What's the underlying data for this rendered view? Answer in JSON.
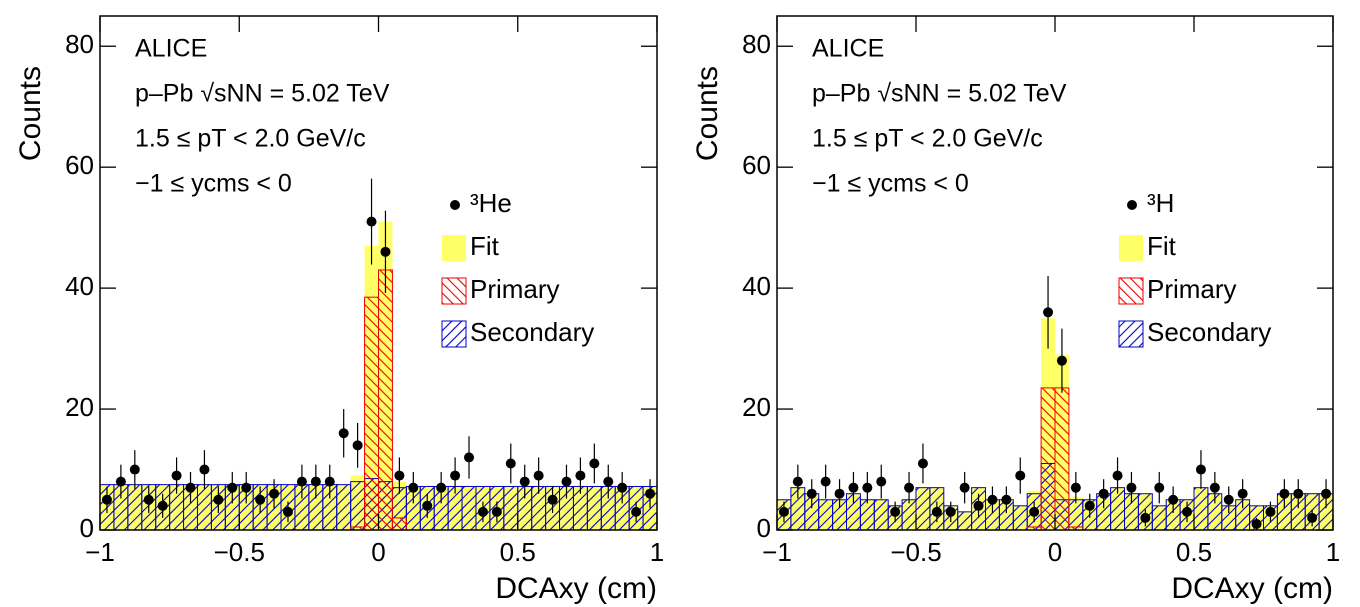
{
  "chart_data": [
    {
      "type": "histogram",
      "xlabel": "DCAxy (cm)",
      "ylabel": "Counts",
      "annotations": [
        "ALICE",
        "p–Pb √sNN = 5.02 TeV",
        "1.5 ≤ pT < 2.0 GeV/c",
        "−1 ≤ ycms < 0"
      ],
      "xlim": [
        -1,
        1
      ],
      "ylim": [
        0,
        85
      ],
      "xticks": [
        {
          "value": -1,
          "label": "−1"
        },
        {
          "value": -0.5,
          "label": "−0.5"
        },
        0,
        0.5,
        1
      ],
      "yticks": [
        0,
        20,
        40,
        60,
        80
      ],
      "bins": [
        -1,
        -0.95,
        -0.9,
        -0.85,
        -0.8,
        -0.75,
        -0.7,
        -0.65,
        -0.6,
        -0.55,
        -0.5,
        -0.45,
        -0.4,
        -0.35,
        -0.3,
        -0.25,
        -0.2,
        -0.15,
        -0.1,
        -0.05,
        0,
        0.05,
        0.1,
        0.15,
        0.2,
        0.25,
        0.3,
        0.35,
        0.4,
        0.45,
        0.5,
        0.55,
        0.6,
        0.65,
        0.7,
        0.75,
        0.8,
        0.85,
        0.9,
        0.95,
        1
      ],
      "series": [
        {
          "name": "Fit",
          "style": "fill",
          "color": "#ffff66",
          "values": [
            7.5,
            7.5,
            7.5,
            7.5,
            7.5,
            7.5,
            7.5,
            7.5,
            7.5,
            7.5,
            7.5,
            7.5,
            7.5,
            7.5,
            7.5,
            7.5,
            7.5,
            7.5,
            9,
            47,
            51,
            8,
            7.2,
            7.2,
            7.2,
            7.2,
            7.2,
            7.2,
            7.2,
            7.2,
            7.2,
            7.2,
            7.2,
            7.2,
            7.2,
            7.2,
            7.2,
            7.2,
            7.2,
            7.2
          ]
        },
        {
          "name": "Secondary",
          "style": "hatch-blue",
          "color": "#0000cc",
          "values": [
            7.5,
            7.5,
            7.5,
            7.5,
            7.5,
            7.5,
            7.5,
            7.5,
            7.5,
            7.5,
            7.5,
            7.5,
            7.5,
            7.5,
            7.5,
            7.5,
            7.5,
            7.5,
            8,
            8.5,
            8,
            7,
            7.2,
            7.2,
            7.2,
            7.2,
            7.2,
            7.2,
            7.2,
            7.2,
            7.2,
            7.2,
            7.2,
            7.2,
            7.2,
            7.2,
            7.2,
            7.2,
            7.2,
            7.2
          ]
        },
        {
          "name": "Primary",
          "style": "hatch-red",
          "color": "#ee0000",
          "values": [
            0,
            0,
            0,
            0,
            0,
            0,
            0,
            0,
            0,
            0,
            0,
            0,
            0,
            0,
            0,
            0,
            0,
            0,
            0.5,
            38.5,
            43,
            2,
            0,
            0,
            0,
            0,
            0,
            0,
            0,
            0,
            0,
            0,
            0,
            0,
            0,
            0,
            0,
            0,
            0,
            0
          ]
        },
        {
          "name": "³He",
          "style": "points",
          "color": "#000000",
          "values": [
            5,
            8,
            10,
            5,
            4,
            9,
            7,
            10,
            5,
            7,
            7,
            5,
            6,
            3,
            8,
            8,
            8,
            16,
            14,
            51,
            46,
            9,
            7,
            4,
            7,
            9,
            12,
            3,
            3,
            11,
            8,
            9,
            5,
            8,
            9,
            11,
            8,
            7,
            3,
            6
          ],
          "errors": [
            2.2,
            2.8,
            3.2,
            2.2,
            2,
            3,
            2.6,
            3.2,
            2.2,
            2.6,
            2.6,
            2.2,
            2.4,
            1.7,
            2.8,
            2.8,
            2.8,
            4,
            3.7,
            7.1,
            6.8,
            3,
            2.6,
            2,
            2.6,
            3,
            3.5,
            1.7,
            1.7,
            3.3,
            2.8,
            3,
            2.2,
            2.8,
            3,
            3.3,
            2.8,
            2.6,
            1.7,
            2.4
          ]
        }
      ]
    },
    {
      "type": "histogram",
      "xlabel": "DCAxy (cm)",
      "ylabel": "Counts",
      "annotations": [
        "ALICE",
        "p–Pb √sNN = 5.02 TeV",
        "1.5 ≤ pT < 2.0 GeV/c",
        "−1 ≤ ycms < 0"
      ],
      "xlim": [
        -1,
        1
      ],
      "ylim": [
        0,
        85
      ],
      "xticks": [
        {
          "value": -1,
          "label": "−1"
        },
        {
          "value": -0.5,
          "label": "−0.5"
        },
        0,
        0.5,
        1
      ],
      "yticks": [
        0,
        20,
        40,
        60,
        80
      ],
      "bins": [
        -1,
        -0.95,
        -0.9,
        -0.85,
        -0.8,
        -0.75,
        -0.7,
        -0.65,
        -0.6,
        -0.55,
        -0.5,
        -0.45,
        -0.4,
        -0.35,
        -0.3,
        -0.25,
        -0.2,
        -0.15,
        -0.1,
        -0.05,
        0,
        0.05,
        0.1,
        0.15,
        0.2,
        0.25,
        0.3,
        0.35,
        0.4,
        0.45,
        0.5,
        0.55,
        0.6,
        0.65,
        0.7,
        0.75,
        0.8,
        0.85,
        0.9,
        0.95,
        1
      ],
      "series": [
        {
          "name": "Fit",
          "style": "fill",
          "color": "#ffff66",
          "values": [
            5,
            7,
            6,
            5,
            5,
            6,
            5,
            5,
            4,
            5,
            7,
            7,
            4,
            3,
            7,
            5,
            5,
            4,
            6.5,
            35,
            29,
            5.5,
            5,
            6,
            7,
            6,
            6,
            4,
            5,
            5,
            7,
            6,
            4,
            5,
            4,
            4,
            6,
            6,
            6,
            6
          ]
        },
        {
          "name": "Secondary",
          "style": "hatch-blue",
          "color": "#0000cc",
          "values": [
            5,
            7,
            6,
            5,
            5,
            6,
            5,
            5,
            4,
            5,
            7,
            7,
            4,
            3,
            7,
            5,
            5,
            4,
            6,
            11,
            5,
            5,
            5,
            6,
            7,
            6,
            6,
            4,
            5,
            5,
            7,
            6,
            4,
            5,
            4,
            4,
            6,
            6,
            6,
            6
          ]
        },
        {
          "name": "Primary",
          "style": "hatch-red",
          "color": "#ee0000",
          "values": [
            0,
            0,
            0,
            0,
            0,
            0,
            0,
            0,
            0,
            0,
            0,
            0,
            0,
            0,
            0,
            0,
            0,
            0,
            0.5,
            23.5,
            23.5,
            0.5,
            0,
            0,
            0,
            0,
            0,
            0,
            0,
            0,
            0,
            0,
            0,
            0,
            0,
            0,
            0,
            0,
            0,
            0
          ]
        },
        {
          "name": "³H",
          "style": "points",
          "color": "#000000",
          "values": [
            3,
            8,
            6,
            8,
            6,
            7,
            7,
            8,
            3,
            7,
            11,
            3,
            3,
            7,
            4,
            5,
            5,
            9,
            3,
            36,
            28,
            7,
            4,
            6,
            9,
            7,
            2,
            7,
            5,
            3,
            10,
            7,
            5,
            6,
            1,
            3,
            6,
            6,
            2,
            6
          ],
          "errors": [
            1.7,
            2.8,
            2.4,
            2.8,
            2.4,
            2.6,
            2.6,
            2.8,
            1.7,
            2.6,
            3.3,
            1.7,
            1.7,
            2.6,
            2,
            2.2,
            2.2,
            3,
            1.7,
            6,
            5.3,
            2.6,
            2,
            2.4,
            3,
            2.6,
            1.4,
            2.6,
            2.2,
            1.7,
            3.2,
            2.6,
            2.2,
            2.4,
            1,
            1.7,
            2.4,
            2.4,
            1.4,
            2.4
          ]
        }
      ]
    }
  ]
}
